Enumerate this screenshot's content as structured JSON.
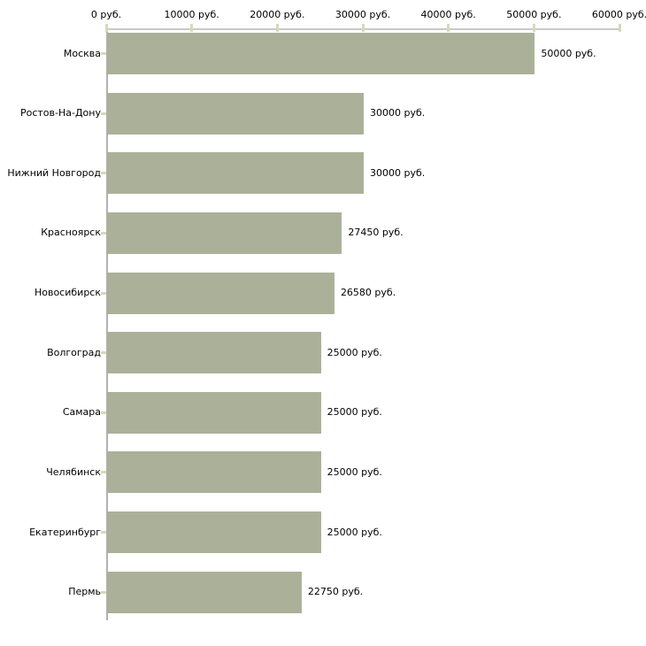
{
  "chart_data": {
    "type": "bar",
    "orientation": "horizontal",
    "title": "",
    "xlabel": "",
    "ylabel": "",
    "grid": false,
    "legend": false,
    "categories": [
      "Москва",
      "Ростов-На-Дону",
      "Нижний Новгород",
      "Красноярск",
      "Новосибирск",
      "Волгоград",
      "Самара",
      "Челябинск",
      "Екатеринбург",
      "Пермь"
    ],
    "values": [
      50000,
      30000,
      30000,
      27450,
      26580,
      25000,
      25000,
      25000,
      25000,
      22750
    ],
    "value_labels": [
      "50000 руб.",
      "30000 руб.",
      "30000 руб.",
      "27450 руб.",
      "26580 руб.",
      "25000 руб.",
      "25000 руб.",
      "25000 руб.",
      "25000 руб.",
      "22750 руб."
    ],
    "x_axis": {
      "position": "top",
      "range": [
        0,
        60000
      ],
      "ticks": [
        0,
        10000,
        20000,
        30000,
        40000,
        50000,
        60000
      ],
      "tick_labels": [
        "0 руб.",
        "10000 руб.",
        "20000 руб.",
        "30000 руб.",
        "40000 руб.",
        "50000 руб.",
        "60000 руб."
      ]
    },
    "colors": {
      "bar": "#abb198",
      "tick": "#d8d8b8",
      "x_axis_line": "#c9c9c9",
      "y_axis_line": "#b2b2b2",
      "text": "#000000",
      "background": "#ffffff"
    }
  }
}
